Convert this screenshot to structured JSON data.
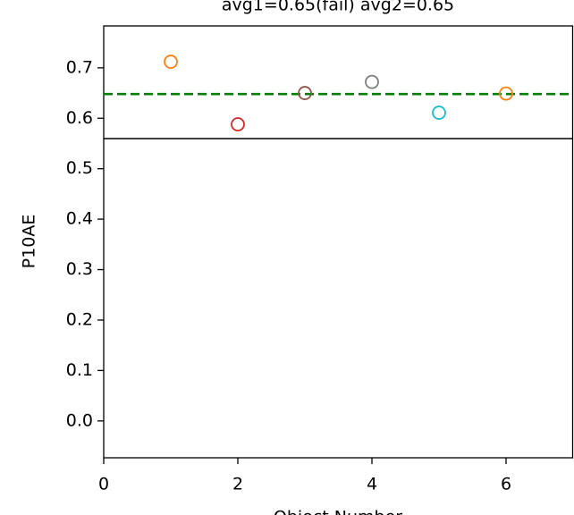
{
  "chart_data": {
    "type": "scatter",
    "title": "avg1=0.65(fail) avg2=0.65",
    "x_label": "Object Number",
    "y_label": "P10AE",
    "x": [
      1,
      2,
      3,
      4,
      5,
      6
    ],
    "values": [
      0.712,
      0.588,
      0.65,
      0.672,
      0.611,
      0.649
    ],
    "colors": [
      "#ff7f0e",
      "#d62728",
      "#8c564b",
      "#7f7f7f",
      "#17becf",
      "#ff7f0e"
    ],
    "hline": {
      "value": 0.648,
      "color": "#008000"
    },
    "xlim": [
      0,
      7
    ],
    "ylim": [
      -0.073,
      0.783
    ],
    "xticks": [
      0,
      2,
      4,
      6
    ],
    "yticks": [
      {
        "value": 0,
        "label": "0.0"
      },
      0.1,
      0.2,
      0.3,
      0.4,
      0.5,
      0.6,
      0.7
    ]
  }
}
